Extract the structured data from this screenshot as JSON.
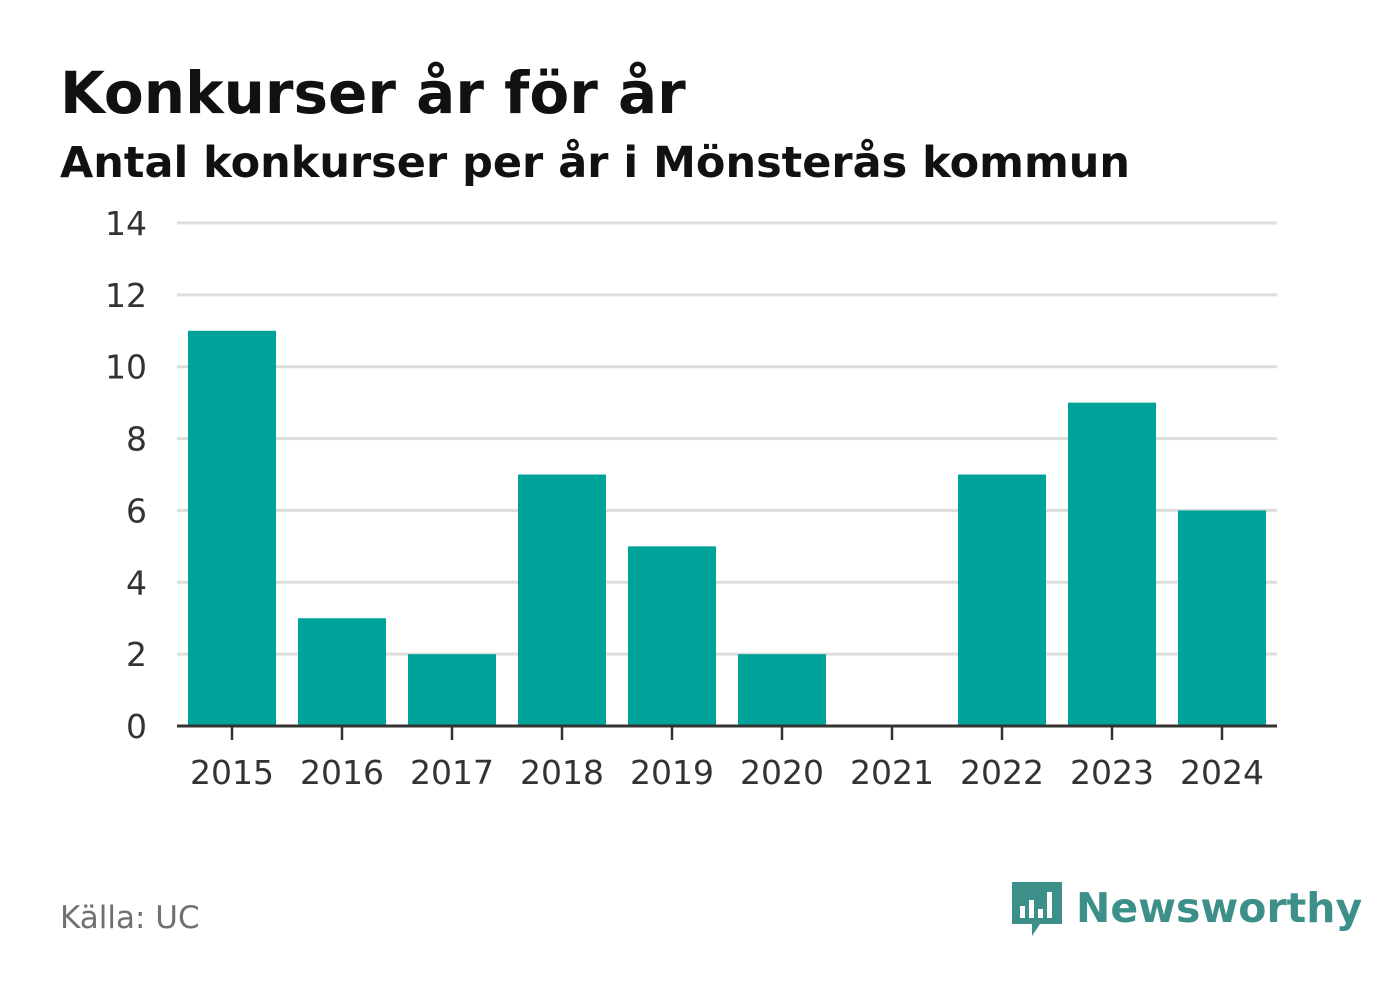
{
  "header": {
    "title": "Konkurser år för år",
    "subtitle": "Antal konkurser per år i Mönsterås kommun"
  },
  "footer": {
    "source": "Källa: UC",
    "brand": "Newsworthy"
  },
  "colors": {
    "bar": "#00a39a",
    "grid": "#dddddd",
    "axis": "#333333",
    "brand": "#3d8f8a"
  },
  "chart_data": {
    "type": "bar",
    "categories": [
      "2015",
      "2016",
      "2017",
      "2018",
      "2019",
      "2020",
      "2021",
      "2022",
      "2023",
      "2024"
    ],
    "values": [
      11,
      3,
      2,
      7,
      5,
      2,
      0,
      7,
      9,
      6
    ],
    "ylim": [
      0,
      14
    ],
    "yticks": [
      0,
      2,
      4,
      6,
      8,
      10,
      12,
      14
    ],
    "grid": true,
    "legend": "none"
  }
}
